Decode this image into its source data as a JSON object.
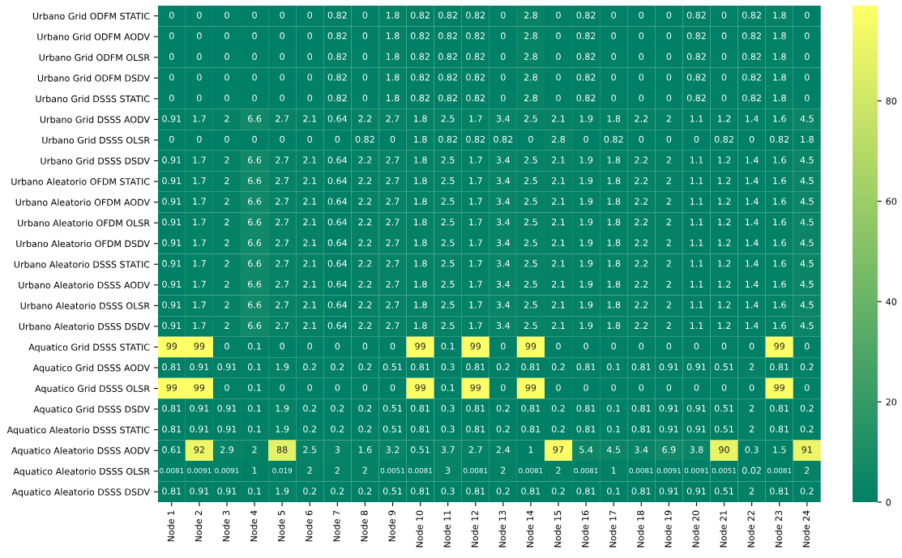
{
  "chart_data": {
    "type": "heatmap",
    "categories": [
      "Node 1",
      "Node 2",
      "Node 3",
      "Node 4",
      "Node 5",
      "Node 6",
      "Node 7",
      "Node 8",
      "Node 9",
      "Node 10",
      "Node 11",
      "Node 12",
      "Node 13",
      "Node 14",
      "Node 15",
      "Node 16",
      "Node 17",
      "Node 18",
      "Node 19",
      "Node 20",
      "Node 21",
      "Node 22",
      "Node 23",
      "Node 24"
    ],
    "y_categories": [
      "Urbano Grid ODFM STATIC",
      "Urbano Grid ODFM AODV",
      "Urbano Grid ODFM OLSR",
      "Urbano Grid ODFM DSDV",
      "Urbano Grid DSSS STATIC",
      "Urbano Grid DSSS AODV",
      "Urbano Grid DSSS OLSR",
      "Urbano Grid DSSS DSDV",
      "Urbano Aleatorio OFDM STATIC",
      "Urbano Aleatorio OFDM AODV",
      "Urbano Aleatorio OFDM OLSR",
      "Urbano Aleatorio OFDM DSDV",
      "Urbano Aleatorio DSSS STATIC",
      "Urbano Aleatorio DSSS AODV",
      "Urbano Aleatorio DSSS OLSR",
      "Urbano Aleatorio DSSS DSDV",
      "Aquatico Grid DSSS STATIC",
      "Aquatico Grid DSSS AODV",
      "Aquatico Grid DSSS OLSR",
      "Aquatico Grid DSSS DSDV",
      "Aquatico Aleatorio DSSS STATIC",
      "Aquatico Aleatorio DSSS AODV",
      "Aquatico Aleatorio DSSS OLSR",
      "Aquatico Aleatorio DSSS DSDV"
    ],
    "cells": [
      [
        0,
        0,
        0,
        0,
        0,
        0,
        0.82,
        0,
        1.8,
        0.82,
        0.82,
        0.82,
        0,
        2.8,
        0,
        0.82,
        0,
        0,
        0,
        0.82,
        0,
        0.82,
        1.8,
        0
      ],
      [
        0,
        0,
        0,
        0,
        0,
        0,
        0.82,
        0,
        1.8,
        0.82,
        0.82,
        0.82,
        0,
        2.8,
        0,
        0.82,
        0,
        0,
        0,
        0.82,
        0,
        0.82,
        1.8,
        0
      ],
      [
        0,
        0,
        0,
        0,
        0,
        0,
        0.82,
        0,
        1.8,
        0.82,
        0.82,
        0.82,
        0,
        2.8,
        0,
        0.82,
        0,
        0,
        0,
        0.82,
        0,
        0.82,
        1.8,
        0
      ],
      [
        0,
        0,
        0,
        0,
        0,
        0,
        0.82,
        0,
        1.8,
        0.82,
        0.82,
        0.82,
        0,
        2.8,
        0,
        0.82,
        0,
        0,
        0,
        0.82,
        0,
        0.82,
        1.8,
        0
      ],
      [
        0,
        0,
        0,
        0,
        0,
        0,
        0.82,
        0,
        1.8,
        0.82,
        0.82,
        0.82,
        0,
        2.8,
        0,
        0.82,
        0,
        0,
        0,
        0.82,
        0,
        0.82,
        1.8,
        0
      ],
      [
        0.91,
        1.7,
        2,
        6.6,
        2.7,
        2.1,
        0.64,
        2.2,
        2.7,
        1.8,
        2.5,
        1.7,
        3.4,
        2.5,
        2.1,
        1.9,
        1.8,
        2.2,
        2,
        1.1,
        1.2,
        1.4,
        1.6,
        4.5
      ],
      [
        0,
        0,
        0,
        0,
        0,
        0,
        0,
        0.82,
        0,
        1.8,
        0.82,
        0.82,
        0.82,
        0,
        2.8,
        0,
        0.82,
        0,
        0,
        0,
        0.82,
        0,
        0.82,
        1.8
      ],
      [
        0.91,
        1.7,
        2,
        6.6,
        2.7,
        2.1,
        0.64,
        2.2,
        2.7,
        1.8,
        2.5,
        1.7,
        3.4,
        2.5,
        2.1,
        1.9,
        1.8,
        2.2,
        2,
        1.1,
        1.2,
        1.4,
        1.6,
        4.5
      ],
      [
        0.91,
        1.7,
        2,
        6.6,
        2.7,
        2.1,
        0.64,
        2.2,
        2.7,
        1.8,
        2.5,
        1.7,
        3.4,
        2.5,
        2.1,
        1.9,
        1.8,
        2.2,
        2,
        1.1,
        1.2,
        1.4,
        1.6,
        4.5
      ],
      [
        0.91,
        1.7,
        2,
        6.6,
        2.7,
        2.1,
        0.64,
        2.2,
        2.7,
        1.8,
        2.5,
        1.7,
        3.4,
        2.5,
        2.1,
        1.9,
        1.8,
        2.2,
        2,
        1.1,
        1.2,
        1.4,
        1.6,
        4.5
      ],
      [
        0.91,
        1.7,
        2,
        6.6,
        2.7,
        2.1,
        0.64,
        2.2,
        2.7,
        1.8,
        2.5,
        1.7,
        3.4,
        2.5,
        2.1,
        1.9,
        1.8,
        2.2,
        2,
        1.1,
        1.2,
        1.4,
        1.6,
        4.5
      ],
      [
        0.91,
        1.7,
        2,
        6.6,
        2.7,
        2.1,
        0.64,
        2.2,
        2.7,
        1.8,
        2.5,
        1.7,
        3.4,
        2.5,
        2.1,
        1.9,
        1.8,
        2.2,
        2,
        1.1,
        1.2,
        1.4,
        1.6,
        4.5
      ],
      [
        0.91,
        1.7,
        2,
        6.6,
        2.7,
        2.1,
        0.64,
        2.2,
        2.7,
        1.8,
        2.5,
        1.7,
        3.4,
        2.5,
        2.1,
        1.9,
        1.8,
        2.2,
        2,
        1.1,
        1.2,
        1.4,
        1.6,
        4.5
      ],
      [
        0.91,
        1.7,
        2,
        6.6,
        2.7,
        2.1,
        0.64,
        2.2,
        2.7,
        1.8,
        2.5,
        1.7,
        3.4,
        2.5,
        2.1,
        1.9,
        1.8,
        2.2,
        2,
        1.1,
        1.2,
        1.4,
        1.6,
        4.5
      ],
      [
        0.91,
        1.7,
        2,
        6.6,
        2.7,
        2.1,
        0.64,
        2.2,
        2.7,
        1.8,
        2.5,
        1.7,
        3.4,
        2.5,
        2.1,
        1.9,
        1.8,
        2.2,
        2,
        1.1,
        1.2,
        1.4,
        1.6,
        4.5
      ],
      [
        0.91,
        1.7,
        2,
        6.6,
        2.7,
        2.1,
        0.64,
        2.2,
        2.7,
        1.8,
        2.5,
        1.7,
        3.4,
        2.5,
        2.1,
        1.9,
        1.8,
        2.2,
        2,
        1.1,
        1.2,
        1.4,
        1.6,
        4.5
      ],
      [
        99,
        99,
        0,
        0.1,
        0,
        0,
        0,
        0,
        0,
        99,
        0.1,
        99,
        0,
        99,
        0,
        0,
        0,
        0,
        0,
        0,
        0,
        0,
        99,
        0
      ],
      [
        0.81,
        0.91,
        0.91,
        0.1,
        1.9,
        0.2,
        0.2,
        0.2,
        0.51,
        0.81,
        0.3,
        0.81,
        0.2,
        0.81,
        0.2,
        0.81,
        0.1,
        0.81,
        0.91,
        0.91,
        0.51,
        2,
        0.81,
        0.2
      ],
      [
        99,
        99,
        0,
        0.1,
        0,
        0,
        0,
        0,
        0,
        99,
        0.1,
        99,
        0,
        99,
        0,
        0,
        0,
        0,
        0,
        0,
        0,
        0,
        99,
        0
      ],
      [
        0.81,
        0.91,
        0.91,
        0.1,
        1.9,
        0.2,
        0.2,
        0.2,
        0.51,
        0.81,
        0.3,
        0.81,
        0.2,
        0.81,
        0.2,
        0.81,
        0.1,
        0.81,
        0.91,
        0.91,
        0.51,
        2,
        0.81,
        0.2
      ],
      [
        0.81,
        0.91,
        0.91,
        0.1,
        1.9,
        0.2,
        0.2,
        0.2,
        0.51,
        0.81,
        0.3,
        0.81,
        0.2,
        0.81,
        0.2,
        0.81,
        0.1,
        0.81,
        0.91,
        0.91,
        0.51,
        2,
        0.81,
        0.2
      ],
      [
        0.61,
        92,
        2.9,
        2,
        88,
        2.5,
        3,
        1.6,
        3.2,
        0.51,
        3.7,
        2.7,
        2.4,
        1,
        97,
        5.4,
        4.5,
        3.4,
        6.9,
        3.8,
        90,
        0.3,
        1.5,
        91
      ],
      [
        0.0081,
        0.0091,
        0.0091,
        1,
        0.019,
        2,
        2,
        2,
        0.0051,
        0.0081,
        3,
        0.0081,
        2,
        0.0081,
        2,
        0.0081,
        1,
        0.0081,
        0.0091,
        0.0091,
        0.0051,
        0.02,
        0.0081,
        2
      ],
      [
        0.81,
        0.91,
        0.91,
        0.1,
        1.9,
        0.2,
        0.2,
        0.2,
        0.51,
        0.81,
        0.3,
        0.81,
        0.2,
        0.81,
        0.2,
        0.81,
        0.1,
        0.81,
        0.91,
        0.91,
        0.51,
        2,
        0.81,
        0.2
      ]
    ],
    "clim": [
      0,
      99
    ],
    "cticks": [
      0,
      20,
      40,
      60,
      80
    ],
    "data_labels": true
  }
}
